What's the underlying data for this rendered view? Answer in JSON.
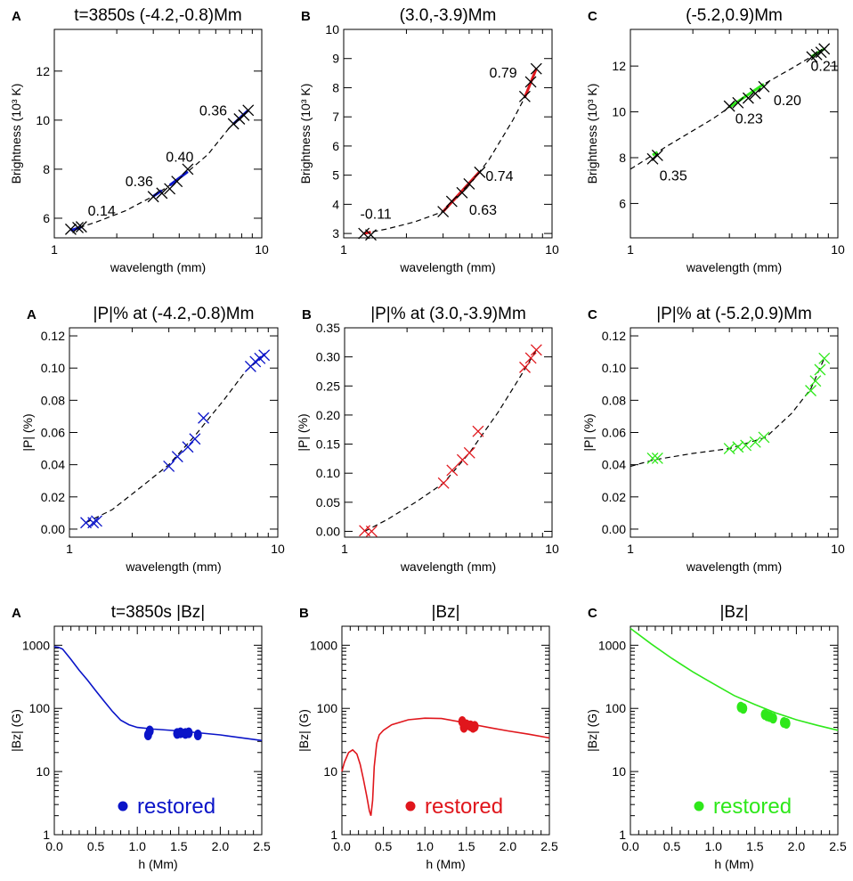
{
  "colors": {
    "A": "#0a14c8",
    "B": "#e0161c",
    "C": "#2ee81a",
    "axis": "#000000"
  },
  "chart_data": [
    {
      "type": "line",
      "row": 0,
      "panel": "A",
      "color_key": "A",
      "title": "t=3850s (-4.2,-0.8)Mm",
      "xlabel": "wavelength (mm)",
      "ylabel": "Brightness (10³ K)",
      "xscale": "log",
      "xlim": [
        1,
        10
      ],
      "ylim": [
        5.2,
        13.7
      ],
      "xticks": [
        1,
        10
      ],
      "xtick_labels": [
        "1",
        "10"
      ],
      "yticks": [
        6,
        8,
        10,
        12
      ],
      "ytick_labels": [
        "6",
        "8",
        "10",
        "12"
      ],
      "series": [
        {
          "name": "brightness",
          "x": [
            1.2,
            1.3,
            1.35,
            3.0,
            3.3,
            3.6,
            3.9,
            4.4,
            7.3,
            7.8,
            8.2,
            8.6
          ],
          "y": [
            5.55,
            5.62,
            5.65,
            6.88,
            7.02,
            7.2,
            7.5,
            8.0,
            9.85,
            10.05,
            10.2,
            10.4
          ],
          "fit_x": [
            1.2,
            1.6,
            2.2,
            3.0,
            4.0,
            5.5,
            7.0,
            8.6
          ],
          "fit_y": [
            5.5,
            5.85,
            6.3,
            6.9,
            7.6,
            8.6,
            9.7,
            10.4
          ],
          "segments": [
            [
              1.2,
              1.35
            ],
            [
              3.0,
              3.3
            ],
            [
              3.6,
              4.4
            ],
            [
              7.3,
              8.6
            ]
          ]
        }
      ],
      "annotations": [
        {
          "text": "0.14",
          "x": 1.45,
          "y": 6.1
        },
        {
          "text": "0.36",
          "x": 2.2,
          "y": 7.3
        },
        {
          "text": "0.40",
          "x": 3.45,
          "y": 8.3
        },
        {
          "text": "0.36",
          "x": 5.0,
          "y": 10.2
        }
      ]
    },
    {
      "type": "line",
      "row": 0,
      "panel": "B",
      "color_key": "B",
      "title": "(3.0,-3.9)Mm",
      "xlabel": "wavelength (mm)",
      "ylabel": "Brightness (10³ K)",
      "xscale": "log",
      "xlim": [
        1,
        10
      ],
      "ylim": [
        2.85,
        10
      ],
      "xticks": [
        1,
        10
      ],
      "xtick_labels": [
        "1",
        "10"
      ],
      "yticks": [
        3,
        4,
        5,
        6,
        7,
        8,
        9,
        10
      ],
      "ytick_labels": [
        "3",
        "4",
        "5",
        "6",
        "7",
        "8",
        "9",
        "10"
      ],
      "series": [
        {
          "name": "brightness",
          "x": [
            1.25,
            1.35,
            3.0,
            3.3,
            3.7,
            4.0,
            4.5,
            7.4,
            7.9,
            8.4
          ],
          "y": [
            3.0,
            2.95,
            3.75,
            4.1,
            4.4,
            4.7,
            5.1,
            7.7,
            8.2,
            8.65
          ],
          "fit_x": [
            1.25,
            1.6,
            2.2,
            3.0,
            4.0,
            5.0,
            6.5,
            7.5,
            8.4
          ],
          "fit_y": [
            3.0,
            3.15,
            3.4,
            3.75,
            4.65,
            5.55,
            6.9,
            7.75,
            8.65
          ],
          "segments": [
            [
              1.25,
              1.35
            ],
            [
              3.0,
              4.5
            ],
            [
              7.4,
              8.4
            ]
          ]
        }
      ],
      "annotations": [
        {
          "text": "-0.11",
          "x": 1.2,
          "y": 3.5
        },
        {
          "text": "0.63",
          "x": 4.0,
          "y": 3.65
        },
        {
          "text": "0.74",
          "x": 4.8,
          "y": 4.8
        },
        {
          "text": "0.79",
          "x": 5.0,
          "y": 8.35
        }
      ]
    },
    {
      "type": "line",
      "row": 0,
      "panel": "C",
      "color_key": "C",
      "title": "(-5.2,0.9)Mm",
      "xlabel": "wavelength (mm)",
      "ylabel": "Brightness (10³ K)",
      "xscale": "log",
      "xlim": [
        1,
        10
      ],
      "ylim": [
        4.5,
        13.6
      ],
      "xticks": [
        1,
        10
      ],
      "xtick_labels": [
        "1",
        "10"
      ],
      "yticks": [
        6,
        8,
        10,
        12
      ],
      "ytick_labels": [
        "6",
        "8",
        "10",
        "12"
      ],
      "series": [
        {
          "name": "brightness",
          "x": [
            1.28,
            1.35,
            3.0,
            3.3,
            3.7,
            4.0,
            4.4,
            7.5,
            7.9,
            8.3,
            8.6
          ],
          "y": [
            7.95,
            8.1,
            10.25,
            10.4,
            10.6,
            10.8,
            11.1,
            12.4,
            12.5,
            12.6,
            12.75
          ],
          "fit_x": [
            1.0,
            1.5,
            2.5,
            4.0,
            6.0,
            8.6
          ],
          "fit_y": [
            7.5,
            8.5,
            9.7,
            11.0,
            11.9,
            12.75
          ],
          "segments": [
            [
              1.28,
              1.35
            ],
            [
              3.0,
              4.4
            ],
            [
              7.5,
              8.6
            ]
          ]
        }
      ],
      "annotations": [
        {
          "text": "0.35",
          "x": 1.38,
          "y": 7.0
        },
        {
          "text": "0.23",
          "x": 3.2,
          "y": 9.5
        },
        {
          "text": "0.20",
          "x": 4.9,
          "y": 10.3
        },
        {
          "text": "0.21",
          "x": 7.4,
          "y": 11.8
        }
      ]
    },
    {
      "type": "line",
      "row": 1,
      "panel": "A",
      "color_key": "A",
      "title": "|P|% at (-4.2,-0.8)Mm",
      "xlabel": "wavelength (mm)",
      "ylabel": "|P| (%)",
      "xscale": "log",
      "xlim": [
        1,
        10
      ],
      "ylim": [
        -0.005,
        0.125
      ],
      "xticks": [
        1,
        10
      ],
      "xtick_labels": [
        "1",
        "10"
      ],
      "yticks": [
        0.0,
        0.02,
        0.04,
        0.06,
        0.08,
        0.1,
        0.12
      ],
      "ytick_labels": [
        "0.00",
        "0.02",
        "0.04",
        "0.06",
        "0.08",
        "0.10",
        "0.12"
      ],
      "series": [
        {
          "name": "|P|",
          "x": [
            1.2,
            1.3,
            1.35,
            3.0,
            3.3,
            3.7,
            4.0,
            4.4,
            7.4,
            7.8,
            8.2,
            8.6
          ],
          "y": [
            0.004,
            0.004,
            0.005,
            0.039,
            0.045,
            0.051,
            0.056,
            0.069,
            0.101,
            0.104,
            0.106,
            0.108
          ],
          "fit_x": [
            1.2,
            1.6,
            2.2,
            3.0,
            4.0,
            5.5,
            7.0,
            8.6
          ],
          "fit_y": [
            0.004,
            0.012,
            0.026,
            0.04,
            0.058,
            0.08,
            0.098,
            0.108
          ],
          "segments": []
        }
      ],
      "annotations": []
    },
    {
      "type": "line",
      "row": 1,
      "panel": "B",
      "color_key": "B",
      "title": "|P|% at (3.0,-3.9)Mm",
      "xlabel": "wavelength (mm)",
      "ylabel": "|P| (%)",
      "xscale": "log",
      "xlim": [
        1,
        10
      ],
      "ylim": [
        -0.01,
        0.35
      ],
      "xticks": [
        1,
        10
      ],
      "xtick_labels": [
        "1",
        "10"
      ],
      "yticks": [
        0.0,
        0.05,
        0.1,
        0.15,
        0.2,
        0.25,
        0.3,
        0.35
      ],
      "ytick_labels": [
        "0.00",
        "0.05",
        "0.10",
        "0.15",
        "0.20",
        "0.25",
        "0.30",
        "0.35"
      ],
      "series": [
        {
          "name": "|P|",
          "x": [
            1.25,
            1.35,
            3.0,
            3.3,
            3.7,
            4.0,
            4.4,
            7.4,
            7.9,
            8.4
          ],
          "y": [
            0.001,
            0.0,
            0.083,
            0.105,
            0.123,
            0.135,
            0.172,
            0.282,
            0.298,
            0.312
          ],
          "fit_x": [
            1.25,
            1.6,
            2.2,
            3.0,
            4.0,
            5.5,
            7.0,
            8.4
          ],
          "fit_y": [
            0.0,
            0.02,
            0.05,
            0.083,
            0.135,
            0.205,
            0.265,
            0.312
          ],
          "segments": []
        }
      ],
      "annotations": []
    },
    {
      "type": "line",
      "row": 1,
      "panel": "C",
      "color_key": "C",
      "title": "|P|% at (-5.2,0.9)Mm",
      "xlabel": "wavelength (mm)",
      "ylabel": "|P| (%)",
      "xscale": "log",
      "xlim": [
        1,
        10
      ],
      "ylim": [
        -0.005,
        0.125
      ],
      "xticks": [
        1,
        10
      ],
      "xtick_labels": [
        "1",
        "10"
      ],
      "yticks": [
        0.0,
        0.02,
        0.04,
        0.06,
        0.08,
        0.1,
        0.12
      ],
      "ytick_labels": [
        "0.00",
        "0.02",
        "0.04",
        "0.06",
        "0.08",
        "0.10",
        "0.12"
      ],
      "series": [
        {
          "name": "|P|",
          "x": [
            1.28,
            1.35,
            3.0,
            3.3,
            3.6,
            4.0,
            4.4,
            7.4,
            7.8,
            8.2,
            8.6
          ],
          "y": [
            0.044,
            0.044,
            0.05,
            0.051,
            0.052,
            0.054,
            0.057,
            0.086,
            0.092,
            0.099,
            0.106
          ],
          "fit_x": [
            1.0,
            1.3,
            2.0,
            3.0,
            4.5,
            6.0,
            7.4,
            8.6
          ],
          "fit_y": [
            0.039,
            0.043,
            0.047,
            0.05,
            0.057,
            0.072,
            0.087,
            0.106
          ],
          "segments": []
        }
      ],
      "annotations": []
    },
    {
      "type": "line",
      "row": 2,
      "panel": "A",
      "color_key": "A",
      "title": "t=3850s  |Bz|",
      "xlabel": "h (Mm)",
      "ylabel": "|Bz| (G)",
      "xscale": "linear",
      "yscale": "log",
      "xlim": [
        0,
        2.5
      ],
      "ylim": [
        1,
        2000
      ],
      "xticks": [
        0,
        0.5,
        1.0,
        1.5,
        2.0,
        2.5
      ],
      "xtick_labels": [
        "0.0",
        "0.5",
        "1.0",
        "1.5",
        "2.0",
        "2.5"
      ],
      "yticks": [
        1,
        10,
        100,
        1000
      ],
      "ytick_labels": [
        "1",
        "10",
        "100",
        "1000"
      ],
      "series": [
        {
          "name": "model",
          "x": [
            0,
            0.05,
            0.1,
            0.2,
            0.3,
            0.4,
            0.5,
            0.6,
            0.7,
            0.8,
            0.9,
            1.0,
            1.2,
            1.5,
            2.0,
            2.5
          ],
          "y": [
            950,
            930,
            870,
            600,
            400,
            280,
            190,
            130,
            90,
            65,
            55,
            50,
            47,
            44,
            38,
            31
          ]
        }
      ],
      "points": {
        "x": [
          1.13,
          1.15,
          1.48,
          1.52,
          1.58,
          1.62,
          1.73
        ],
        "y": [
          38,
          44,
          40,
          41,
          40,
          41,
          38
        ]
      },
      "legend_label": "restored"
    },
    {
      "type": "line",
      "row": 2,
      "panel": "B",
      "color_key": "B",
      "title": "|Bz|",
      "xlabel": "h (Mm)",
      "ylabel": "|Bz| (G)",
      "xscale": "linear",
      "yscale": "log",
      "xlim": [
        0,
        2.5
      ],
      "ylim": [
        1,
        2000
      ],
      "xticks": [
        0,
        0.5,
        1.0,
        1.5,
        2.0,
        2.5
      ],
      "xtick_labels": [
        "0.0",
        "0.5",
        "1.0",
        "1.5",
        "2.0",
        "2.5"
      ],
      "yticks": [
        1,
        10,
        100,
        1000
      ],
      "ytick_labels": [
        "1",
        "10",
        "100",
        "1000"
      ],
      "series": [
        {
          "name": "model",
          "x": [
            0,
            0.03,
            0.08,
            0.13,
            0.18,
            0.22,
            0.26,
            0.3,
            0.33,
            0.35,
            0.37,
            0.39,
            0.42,
            0.45,
            0.5,
            0.6,
            0.8,
            1.0,
            1.2,
            1.4,
            1.6,
            1.8,
            2.0,
            2.25,
            2.5
          ],
          "y": [
            10,
            14,
            20,
            22,
            19,
            13,
            7.5,
            4,
            2.4,
            2.0,
            3.5,
            12,
            28,
            38,
            45,
            55,
            66,
            70,
            69,
            62,
            55,
            49,
            44,
            39,
            34
          ]
        }
      ],
      "points": {
        "x": [
          1.45,
          1.47,
          1.5,
          1.55,
          1.58,
          1.6
        ],
        "y": [
          62,
          50,
          55,
          53,
          50,
          52
        ]
      },
      "legend_label": "restored"
    },
    {
      "type": "line",
      "row": 2,
      "panel": "C",
      "color_key": "C",
      "title": "|Bz|",
      "xlabel": "h (Mm)",
      "ylabel": "|Bz| (G)",
      "xscale": "linear",
      "yscale": "log",
      "xlim": [
        0,
        2.5
      ],
      "ylim": [
        1,
        2000
      ],
      "xticks": [
        0,
        0.5,
        1.0,
        1.5,
        2.0,
        2.5
      ],
      "xtick_labels": [
        "0.0",
        "0.5",
        "1.0",
        "1.5",
        "2.0",
        "2.5"
      ],
      "yticks": [
        1,
        10,
        100,
        1000
      ],
      "ytick_labels": [
        "1",
        "10",
        "100",
        "1000"
      ],
      "series": [
        {
          "name": "model",
          "x": [
            0,
            0.25,
            0.5,
            0.75,
            1.0,
            1.25,
            1.5,
            1.75,
            2.0,
            2.25,
            2.5
          ],
          "y": [
            1850,
            1050,
            620,
            380,
            245,
            160,
            115,
            85,
            66,
            54,
            45
          ]
        }
      ],
      "points": {
        "x": [
          1.33,
          1.36,
          1.62,
          1.65,
          1.68,
          1.72,
          1.85,
          1.88
        ],
        "y": [
          105,
          100,
          80,
          76,
          74,
          70,
          60,
          58
        ]
      },
      "legend_label": "restored"
    }
  ]
}
